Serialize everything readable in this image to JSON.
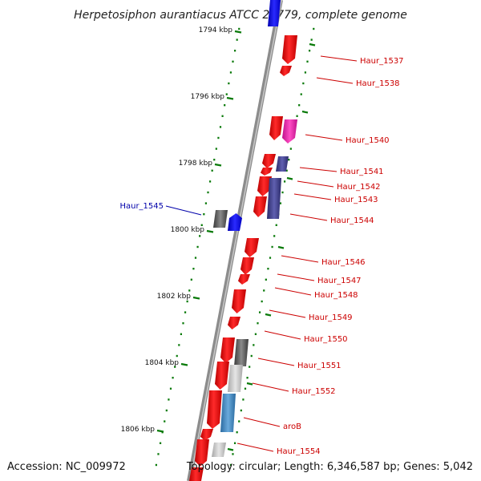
{
  "title": "Herpetosiphon aurantiacus ATCC 23779, complete genome",
  "accession": "Accession: NC_009972",
  "topology": "Topology: circular; Length: 6,346,587 bp; Genes: 5,042",
  "colors": {
    "backbone": "#8c8c8c",
    "tick": "#0a7a0a",
    "label_default": "#cc0000",
    "label_highlight": "#0000aa"
  },
  "kbp_labels": [
    "1794 kbp",
    "1796 kbp",
    "1798 kbp",
    "1800 kbp",
    "1802 kbp",
    "1804 kbp",
    "1806 kbp"
  ],
  "gene_labels": [
    {
      "text": "Haur_1537"
    },
    {
      "text": "Haur_1538"
    },
    {
      "text": "Haur_1540"
    },
    {
      "text": "Haur_1541"
    },
    {
      "text": "Haur_1542"
    },
    {
      "text": "Haur_1543"
    },
    {
      "text": "Haur_1544"
    },
    {
      "text": "Haur_1545"
    },
    {
      "text": "Haur_1546"
    },
    {
      "text": "Haur_1547"
    },
    {
      "text": "Haur_1548"
    },
    {
      "text": "Haur_1549"
    },
    {
      "text": "Haur_1550"
    },
    {
      "text": "Haur_1551"
    },
    {
      "text": "Haur_1552"
    },
    {
      "text": "aroB"
    },
    {
      "text": "Haur_1554"
    }
  ]
}
